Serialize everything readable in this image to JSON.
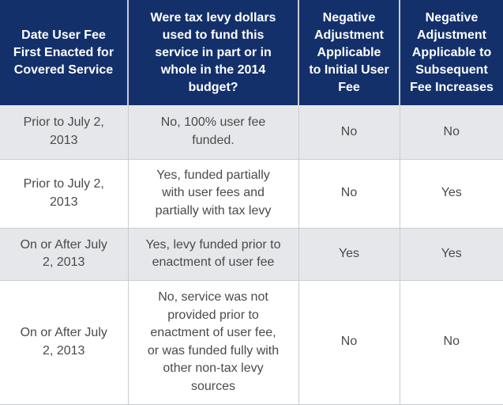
{
  "table": {
    "headers": [
      [
        "Date User Fee",
        "First Enacted for",
        "Covered Service"
      ],
      [
        "Were tax levy dollars",
        "used to fund this",
        "service in part or in",
        "whole in the 2014",
        "budget?"
      ],
      [
        "Negative",
        "Adjustment",
        "Applicable",
        "to Initial User",
        "Fee"
      ],
      [
        "Negative",
        "Adjustment",
        "Applicable to",
        "Subsequent",
        "Fee Increases"
      ]
    ],
    "rows": [
      {
        "date": [
          "Prior to July 2,",
          "2013"
        ],
        "funding": [
          "No, 100% user fee",
          "funded."
        ],
        "initial": "No",
        "subsequent": "No"
      },
      {
        "date": [
          "Prior to July 2,",
          "2013"
        ],
        "funding": [
          "Yes, funded partially",
          "with user fees and",
          "partially with tax levy"
        ],
        "initial": "No",
        "subsequent": "Yes"
      },
      {
        "date": [
          "On or After July",
          "2, 2013"
        ],
        "funding": [
          "Yes, levy funded prior to",
          "enactment of user fee"
        ],
        "initial": "Yes",
        "subsequent": "Yes"
      },
      {
        "date": [
          "On or After July",
          "2, 2013"
        ],
        "funding": [
          "No, service was not",
          "provided prior to",
          "enactment of user fee,",
          "or was funded fully with",
          "other non-tax levy",
          "sources"
        ],
        "initial": "No",
        "subsequent": "No"
      }
    ]
  },
  "colors": {
    "header_bg": "#13306b",
    "header_text": "#ffffff",
    "stripe_bg": "#e6e7ea",
    "body_text": "#4a4a4a"
  }
}
